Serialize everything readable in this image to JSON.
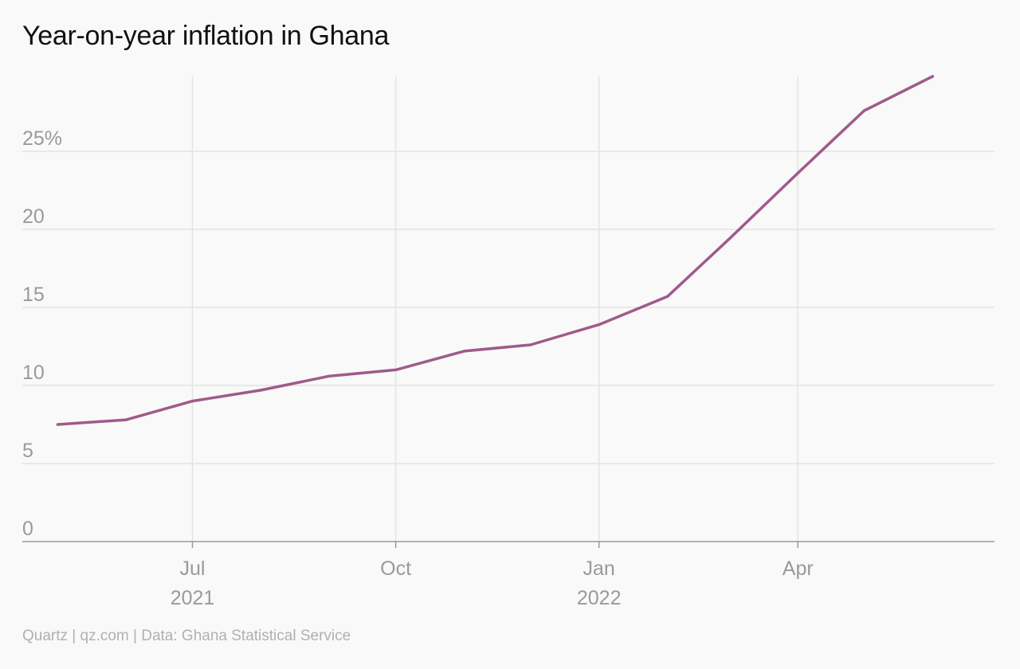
{
  "title": "Year-on-year inflation in Ghana",
  "source": "Quartz | qz.com | Data: Ghana Statistical Service",
  "colors": {
    "line": "#a05a8a",
    "grid": "#e3e3e3",
    "axis": "#9a9a9a",
    "tick_text": "#9a9a9a"
  },
  "chart_data": {
    "type": "line",
    "title": "Year-on-year inflation in Ghana",
    "xlabel": "",
    "ylabel": "",
    "y_unit": "%",
    "ylim": [
      0,
      30
    ],
    "yticks": [
      {
        "value": 0,
        "label": "0"
      },
      {
        "value": 5,
        "label": "5"
      },
      {
        "value": 10,
        "label": "10"
      },
      {
        "value": 15,
        "label": "15"
      },
      {
        "value": 20,
        "label": "20"
      },
      {
        "value": 25,
        "label": "25%"
      }
    ],
    "xlim": [
      "2021-04-15",
      "2022-06-29"
    ],
    "xticks": [
      {
        "date": "2021-07-01",
        "label": "Jul",
        "sublabel": "2021"
      },
      {
        "date": "2021-10-01",
        "label": "Oct",
        "sublabel": ""
      },
      {
        "date": "2022-01-01",
        "label": "Jan",
        "sublabel": "2022"
      },
      {
        "date": "2022-04-01",
        "label": "Apr",
        "sublabel": ""
      }
    ],
    "grid": true,
    "series": [
      {
        "color": "#a05a8a",
        "points": [
          {
            "date": "2021-05-01",
            "value": 7.5
          },
          {
            "date": "2021-06-01",
            "value": 7.8
          },
          {
            "date": "2021-07-01",
            "value": 9.0
          },
          {
            "date": "2021-08-01",
            "value": 9.7
          },
          {
            "date": "2021-09-01",
            "value": 10.6
          },
          {
            "date": "2021-10-01",
            "value": 11.0
          },
          {
            "date": "2021-11-01",
            "value": 12.2
          },
          {
            "date": "2021-12-01",
            "value": 12.6
          },
          {
            "date": "2022-01-01",
            "value": 13.9
          },
          {
            "date": "2022-02-01",
            "value": 15.7
          },
          {
            "date": "2022-03-01",
            "value": 19.4
          },
          {
            "date": "2022-04-01",
            "value": 23.6
          },
          {
            "date": "2022-05-01",
            "value": 27.6
          },
          {
            "date": "2022-06-01",
            "value": 29.8
          }
        ]
      }
    ]
  }
}
